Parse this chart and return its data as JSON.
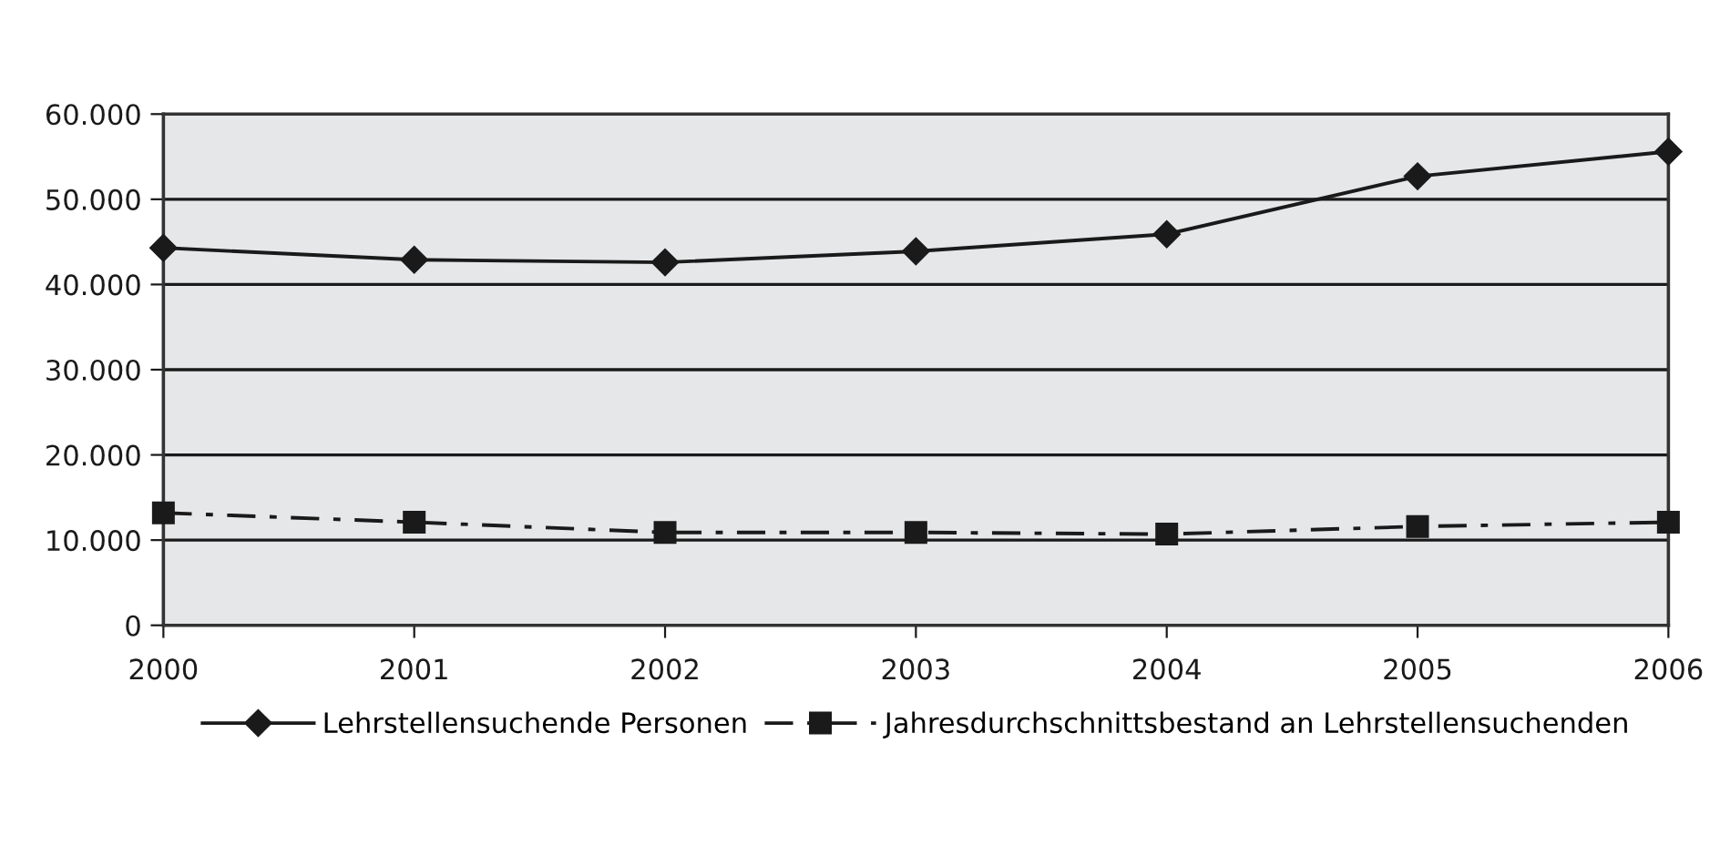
{
  "chart_data": {
    "type": "line",
    "categories": [
      "2000",
      "2001",
      "2002",
      "2003",
      "2004",
      "2005",
      "2006"
    ],
    "series": [
      {
        "name": "Lehrstellensuchende Personen",
        "color": "#1a1a1a",
        "marker": "diamond",
        "line_style": "solid",
        "values": [
          44300,
          42900,
          42600,
          43900,
          45900,
          52700,
          55600
        ]
      },
      {
        "name": "Jahresdurchschnittsbestand an Lehrstellensuchenden",
        "color": "#1a1a1a",
        "marker": "square",
        "line_style": "dashdot",
        "values": [
          13200,
          12100,
          10900,
          10900,
          10700,
          11600,
          12100
        ]
      }
    ],
    "ylim": [
      0,
      60000
    ],
    "yticks": [
      {
        "value": 0,
        "label": "0"
      },
      {
        "value": 10000,
        "label": "10.000"
      },
      {
        "value": 20000,
        "label": "20.000"
      },
      {
        "value": 30000,
        "label": "30.000"
      },
      {
        "value": 40000,
        "label": "40.000"
      },
      {
        "value": 50000,
        "label": "50.000"
      },
      {
        "value": 60000,
        "label": "60.000"
      }
    ],
    "grid": "y",
    "legend": "bottom"
  }
}
